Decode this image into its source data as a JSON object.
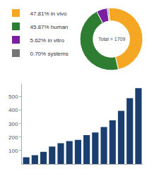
{
  "chart_data": [
    {
      "type": "bar",
      "categories": [
        null,
        null,
        null,
        null,
        null,
        null,
        null,
        null,
        null,
        null,
        null,
        null,
        null,
        null
      ],
      "values": [
        50,
        65,
        90,
        130,
        155,
        170,
        180,
        215,
        235,
        275,
        325,
        395,
        490,
        565
      ],
      "color": "#1A3F6F",
      "ylim": [
        0,
        600
      ],
      "yticks": [
        100,
        200,
        300,
        400,
        500
      ],
      "grid": false,
      "tick_labels": "y"
    },
    {
      "type": "pie",
      "categories": [
        "47.81% in vivo",
        "45.87% human",
        "5.62% in vitro",
        "0.70% systems"
      ],
      "values": [
        47.81,
        45.87,
        5.62,
        0.7
      ],
      "colors": [
        "#F5A623",
        "#2E7D32",
        "#7B1FA2",
        "#757575"
      ],
      "legend": "top left",
      "annotations": [
        "Total = 1709"
      ]
    }
  ]
}
